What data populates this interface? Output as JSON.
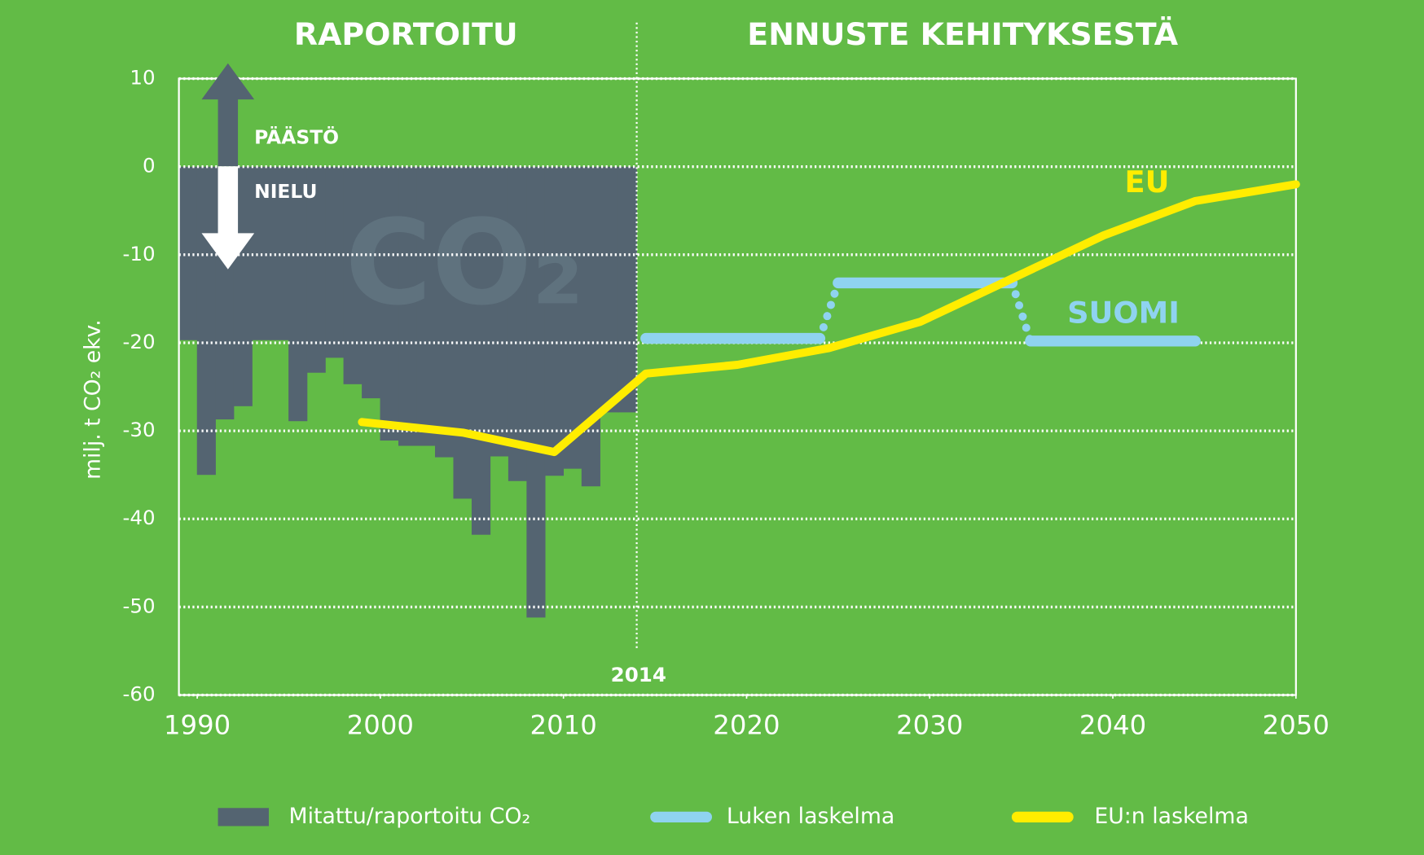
{
  "chart_data": {
    "type": "bar_line",
    "titles": [
      "RAPORTOITU",
      "ENNUSTE KEHITYKSESTÄ"
    ],
    "ylabel": "milj. t CO₂ ekv.",
    "annotations": {
      "up": "PÄÄSTÖ",
      "down": "NIELU",
      "eu": "EU",
      "suomi": "SUOMI",
      "year": "2014",
      "watermark": "CO₂"
    },
    "divider_x": 2014,
    "xlim": [
      1989,
      2050
    ],
    "xticks": [
      1990,
      2000,
      2010,
      2020,
      2030,
      2040,
      2050
    ],
    "ylim": [
      -60,
      10
    ],
    "yticks": [
      10,
      0,
      -10,
      -20,
      -30,
      -40,
      -50,
      -60
    ],
    "grid": true,
    "bars": {
      "name": "Mitattu/raportoitu CO₂",
      "color": "#546471",
      "x": [
        1989,
        1990,
        1991,
        1992,
        1993,
        1994,
        1995,
        1996,
        1997,
        1998,
        1999,
        2000,
        2001,
        2002,
        2003,
        2004,
        2005,
        2006,
        2007,
        2008,
        2009,
        2010,
        2011,
        2012,
        2013
      ],
      "values": [
        -19.7,
        -35,
        -28.7,
        -27.2,
        -19.7,
        -19.7,
        -28.9,
        -23.4,
        -21.7,
        -24.7,
        -26.3,
        -31.1,
        -31.7,
        -31.7,
        -33,
        -37.7,
        -41.8,
        -32.9,
        -35.7,
        -51.2,
        -35.1,
        -34.3,
        -36.3,
        -27.9,
        -27.9
      ]
    },
    "series": [
      {
        "name": "Luken laskelma",
        "color": "#8fd3f0",
        "x": [
          2014.5,
          2024,
          2025,
          2034.5,
          2035.5,
          2044.5
        ],
        "values": [
          -19.5,
          -19.5,
          -13.2,
          -13.2,
          -19.8,
          -19.8
        ]
      },
      {
        "name": "EU:n laskelma",
        "color": "#ffed00",
        "x": [
          1999,
          2004.5,
          2009.5,
          2014.5,
          2019.5,
          2024.5,
          2029.5,
          2039.5,
          2044.5,
          2050
        ],
        "values": [
          -29,
          -30.2,
          -32.4,
          -23.5,
          -22.5,
          -20.6,
          -17.6,
          -7.8,
          -3.9,
          -2
        ]
      }
    ]
  }
}
